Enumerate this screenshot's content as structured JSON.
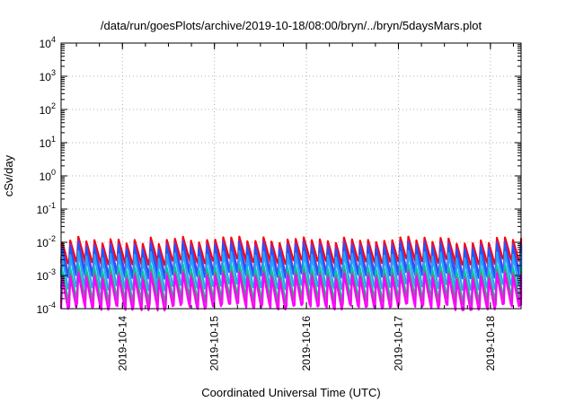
{
  "chart_data": {
    "type": "line",
    "title": "/data/run/goesPlots/archive/2019-10-18/08:00/bryn/../bryn/5daysMars.plot",
    "xlabel": "Coordinated Universal Time (UTC)",
    "ylabel": "cSv/day",
    "y_scale": "log",
    "ylim": [
      0.0001,
      10000
    ],
    "y_ticks": [
      {
        "base": "10",
        "exp": "-4",
        "value": 0.0001
      },
      {
        "base": "10",
        "exp": "-3",
        "value": 0.001
      },
      {
        "base": "10",
        "exp": "-2",
        "value": 0.01
      },
      {
        "base": "10",
        "exp": "-1",
        "value": 0.1
      },
      {
        "base": "10",
        "exp": "0",
        "value": 1
      },
      {
        "base": "10",
        "exp": "1",
        "value": 10
      },
      {
        "base": "10",
        "exp": "2",
        "value": 100
      },
      {
        "base": "10",
        "exp": "3",
        "value": 1000
      },
      {
        "base": "10",
        "exp": "4",
        "value": 10000
      }
    ],
    "xlim": [
      "2019-10-13T08:00",
      "2019-10-18T08:00"
    ],
    "x_ticks": [
      "2019-10-14",
      "2019-10-15",
      "2019-10-16",
      "2019-10-17",
      "2019-10-18"
    ],
    "grid": true,
    "cycle_hours": 2.1,
    "series": [
      {
        "color": "#ff0000",
        "peak": 0.011,
        "trough": 0.0026
      },
      {
        "color": "#8e2bbf",
        "peak": 0.0085,
        "trough": 0.0013
      },
      {
        "color": "#1c59ff",
        "peak": 0.0068,
        "trough": 0.001
      },
      {
        "color": "#2aa0ff",
        "peak": 0.004,
        "trough": 0.00045
      },
      {
        "color": "#00c8a0",
        "peak": 0.0016,
        "trough": 0.00022
      },
      {
        "color": "#7a7a7a",
        "peak": 0.0011,
        "trough": 0.00017
      },
      {
        "color": "#ff00ff",
        "peak": 0.0009,
        "trough": 0.00011
      }
    ]
  }
}
